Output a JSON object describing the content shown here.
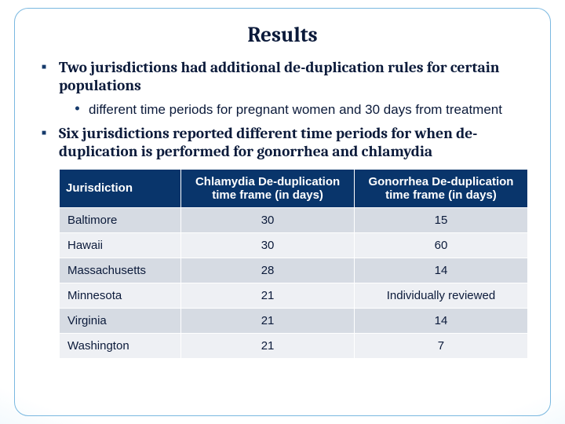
{
  "title": "Results",
  "bullets": [
    {
      "text": "Two jurisdictions had  additional de-duplication  rules for certain populations",
      "sub": [
        "different time periods for pregnant women and 30 days from treatment"
      ]
    },
    {
      "text": "Six jurisdictions reported  different time periods for  when de-duplication is performed for gonorrhea  and chlamydia",
      "sub": []
    }
  ],
  "table": {
    "columns": [
      "Jurisdiction",
      "Chlamydia De-duplication time frame (in days)",
      "Gonorrhea De-duplication time frame (in days)"
    ],
    "rows": [
      [
        "Baltimore",
        "30",
        "15"
      ],
      [
        "Hawaii",
        "30",
        "60"
      ],
      [
        "Massachusetts",
        "28",
        "14"
      ],
      [
        "Minnesota",
        "21",
        "Individually reviewed"
      ],
      [
        "Virginia",
        "21",
        "14"
      ],
      [
        "Washington",
        "21",
        "7"
      ]
    ],
    "header_bg": "#09356b",
    "header_fg": "#ffffff",
    "row_odd_bg": "#d6dbe3",
    "row_even_bg": "#eef0f4",
    "font_size": 15
  },
  "colors": {
    "frame_border": "#7ab8e0",
    "text": "#0b1a3a",
    "bullet_marker": "#153a6b",
    "bg_gradient_inner": "#ffffff",
    "bg_gradient_outer": "#6db6e8"
  },
  "typography": {
    "title_family": "Cambria",
    "title_size": 27,
    "bullet_family": "Cambria",
    "bullet_size": 19.5,
    "subbullet_family": "Arial",
    "subbullet_size": 17
  }
}
